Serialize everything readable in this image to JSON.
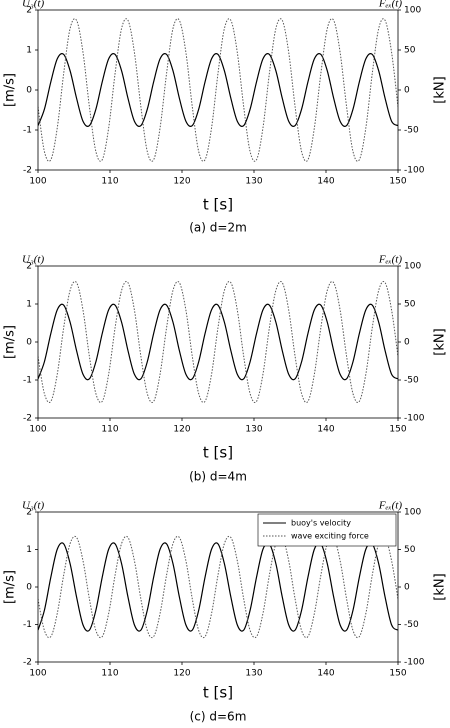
{
  "chart_data": [
    {
      "type": "line",
      "y_title": "U₃(t)",
      "y2_title": "Fₑₓ(t)",
      "ylabel": "[m/s]",
      "y2label": "[kN]",
      "xlabel": "t [s]",
      "caption": "(a) d=2m",
      "x": [
        100,
        100.89,
        101.79,
        102.68,
        103.57,
        104.46,
        105.36,
        106.25,
        107.14,
        108.04,
        108.93,
        109.82,
        110.71,
        111.61,
        112.5,
        113.39,
        114.29,
        115.18,
        116.07,
        116.96,
        117.86,
        118.75,
        119.64,
        120.54,
        121.43,
        122.32,
        123.21,
        124.11,
        125,
        125.89,
        126.79,
        127.68,
        128.57,
        129.46,
        130.36,
        131.25,
        132.14,
        133.04,
        133.93,
        134.82,
        135.71,
        136.61,
        137.5,
        138.39,
        139.29,
        140.18,
        141.07,
        141.96,
        142.86,
        143.75,
        144.64,
        145.54,
        146.43,
        147.32,
        148.21,
        149.11,
        150
      ],
      "xlim": [
        100,
        150
      ],
      "xticks": [
        100,
        110,
        120,
        130,
        140,
        150
      ],
      "ylim": [
        -2,
        2
      ],
      "yticks": [
        -2,
        -1,
        0,
        1,
        2
      ],
      "y2lim": [
        -100,
        100
      ],
      "y2ticks": [
        -100,
        -50,
        0,
        50,
        100
      ],
      "series": [
        {
          "color": "#000000",
          "style": "solid",
          "values": [
            -0.89,
            -0.48,
            0.21,
            0.78,
            0.89,
            0.48,
            -0.21,
            -0.78,
            -0.89,
            -0.48,
            0.21,
            0.78,
            0.89,
            0.48,
            -0.21,
            -0.78,
            -0.89,
            -0.48,
            0.21,
            0.78,
            0.89,
            0.48,
            -0.21,
            -0.78,
            -0.89,
            -0.48,
            0.21,
            0.78,
            0.89,
            0.48,
            -0.21,
            -0.78,
            -0.89,
            -0.48,
            0.21,
            0.78,
            0.89,
            0.48,
            -0.21,
            -0.78,
            -0.89,
            -0.48,
            0.21,
            0.78,
            0.89,
            0.48,
            -0.21,
            -0.78,
            -0.89,
            -0.48,
            0.21,
            0.78,
            0.89,
            0.48,
            -0.21,
            -0.78,
            -0.89
          ]
        },
        {
          "color": "#555555",
          "style": "dotted",
          "axis": "y2",
          "values": [
            -21,
            -77,
            -87,
            -47,
            21,
            77,
            87,
            47,
            -21,
            -77,
            -87,
            -47,
            21,
            77,
            87,
            47,
            -21,
            -77,
            -87,
            -47,
            21,
            77,
            87,
            47,
            -21,
            -77,
            -87,
            -47,
            21,
            77,
            87,
            47,
            -21,
            -77,
            -87,
            -47,
            21,
            77,
            87,
            47,
            -21,
            -77,
            -87,
            -47,
            21,
            77,
            87,
            47,
            -21,
            -77,
            -87,
            -47,
            21,
            77,
            87,
            47,
            -21
          ]
        }
      ]
    },
    {
      "type": "line",
      "y_title": "U₃(t)",
      "y2_title": "Fₑₓ(t)",
      "ylabel": "[m/s]",
      "y2label": "[kN]",
      "xlabel": "t [s]",
      "caption": "(b) d=4m",
      "x": [
        100,
        100.89,
        101.79,
        102.68,
        103.57,
        104.46,
        105.36,
        106.25,
        107.14,
        108.04,
        108.93,
        109.82,
        110.71,
        111.61,
        112.5,
        113.39,
        114.29,
        115.18,
        116.07,
        116.96,
        117.86,
        118.75,
        119.64,
        120.54,
        121.43,
        122.32,
        123.21,
        124.11,
        125,
        125.89,
        126.79,
        127.68,
        128.57,
        129.46,
        130.36,
        131.25,
        132.14,
        133.04,
        133.93,
        134.82,
        135.71,
        136.61,
        137.5,
        138.39,
        139.29,
        140.18,
        141.07,
        141.96,
        142.86,
        143.75,
        144.64,
        145.54,
        146.43,
        147.32,
        148.21,
        149.11,
        150
      ],
      "xlim": [
        100,
        150
      ],
      "xticks": [
        100,
        110,
        120,
        130,
        140,
        150
      ],
      "ylim": [
        -2,
        2
      ],
      "yticks": [
        -2,
        -1,
        0,
        1,
        2
      ],
      "y2lim": [
        -100,
        100
      ],
      "y2ticks": [
        -100,
        -50,
        0,
        50,
        100
      ],
      "series": [
        {
          "color": "#000000",
          "style": "solid",
          "values": [
            -0.97,
            -0.52,
            0.23,
            0.85,
            0.97,
            0.52,
            -0.23,
            -0.85,
            -0.97,
            -0.52,
            0.23,
            0.85,
            0.97,
            0.52,
            -0.23,
            -0.85,
            -0.97,
            -0.52,
            0.23,
            0.85,
            0.97,
            0.52,
            -0.23,
            -0.85,
            -0.97,
            -0.52,
            0.23,
            0.85,
            0.97,
            0.52,
            -0.23,
            -0.85,
            -0.97,
            -0.52,
            0.23,
            0.85,
            0.97,
            0.52,
            -0.23,
            -0.85,
            -0.97,
            -0.52,
            0.23,
            0.85,
            0.97,
            0.52,
            -0.23,
            -0.85,
            -0.97,
            -0.52,
            0.23,
            0.85,
            0.97,
            0.52,
            -0.23,
            -0.85,
            -0.97
          ]
        },
        {
          "color": "#555555",
          "style": "dotted",
          "axis": "y2",
          "values": [
            -19,
            -68,
            -78,
            -42,
            19,
            68,
            78,
            42,
            -19,
            -68,
            -78,
            -42,
            19,
            68,
            78,
            42,
            -19,
            -68,
            -78,
            -42,
            19,
            68,
            78,
            42,
            -19,
            -68,
            -78,
            -42,
            19,
            68,
            78,
            42,
            -19,
            -68,
            -78,
            -42,
            19,
            68,
            78,
            42,
            -19,
            -68,
            -78,
            -42,
            19,
            68,
            78,
            42,
            -19,
            -68,
            -78,
            -42,
            19,
            68,
            78,
            42,
            -19
          ]
        }
      ]
    },
    {
      "type": "line",
      "y_title": "U₃(t)",
      "y2_title": "Fₑₓ(t)",
      "ylabel": "[m/s]",
      "y2label": "[kN]",
      "xlabel": "t [s]",
      "caption": "(c) d=6m",
      "legend": "upper right",
      "x": [
        100,
        100.89,
        101.79,
        102.68,
        103.57,
        104.46,
        105.36,
        106.25,
        107.14,
        108.04,
        108.93,
        109.82,
        110.71,
        111.61,
        112.5,
        113.39,
        114.29,
        115.18,
        116.07,
        116.96,
        117.86,
        118.75,
        119.64,
        120.54,
        121.43,
        122.32,
        123.21,
        124.11,
        125,
        125.89,
        126.79,
        127.68,
        128.57,
        129.46,
        130.36,
        131.25,
        132.14,
        133.04,
        133.93,
        134.82,
        135.71,
        136.61,
        137.5,
        138.39,
        139.29,
        140.18,
        141.07,
        141.96,
        142.86,
        143.75,
        144.64,
        145.54,
        146.43,
        147.32,
        148.21,
        149.11,
        150
      ],
      "xlim": [
        100,
        150
      ],
      "xticks": [
        100,
        110,
        120,
        130,
        140,
        150
      ],
      "ylim": [
        -2,
        2
      ],
      "yticks": [
        -2,
        -1,
        0,
        1,
        2
      ],
      "y2lim": [
        -100,
        100
      ],
      "y2ticks": [
        -100,
        -50,
        0,
        50,
        100
      ],
      "series": [
        {
          "name": "buoy's velocity",
          "color": "#000000",
          "style": "solid",
          "values": [
            -1.15,
            -0.62,
            0.27,
            1.01,
            1.15,
            0.62,
            -0.27,
            -1.01,
            -1.15,
            -0.62,
            0.27,
            1.01,
            1.15,
            0.62,
            -0.27,
            -1.01,
            -1.15,
            -0.62,
            0.27,
            1.01,
            1.15,
            0.62,
            -0.27,
            -1.01,
            -1.15,
            -0.62,
            0.27,
            1.01,
            1.15,
            0.62,
            -0.27,
            -1.01,
            -1.15,
            -0.62,
            0.27,
            1.01,
            1.15,
            0.62,
            -0.27,
            -1.01,
            -1.15,
            -0.62,
            0.27,
            1.01,
            1.15,
            0.62,
            -0.27,
            -1.01,
            -1.15,
            -0.62,
            0.27,
            1.01,
            1.15,
            0.62,
            -0.27,
            -1.01,
            -1.15
          ]
        },
        {
          "name": "wave exciting force",
          "color": "#555555",
          "style": "dotted",
          "axis": "y2",
          "values": [
            -16,
            -58,
            -66,
            -35,
            16,
            58,
            66,
            35,
            -16,
            -58,
            -66,
            -35,
            16,
            58,
            66,
            35,
            -16,
            -58,
            -66,
            -35,
            16,
            58,
            66,
            35,
            -16,
            -58,
            -66,
            -35,
            16,
            58,
            66,
            35,
            -16,
            -58,
            -66,
            -35,
            16,
            58,
            66,
            35,
            -16,
            -58,
            -66,
            -35,
            16,
            58,
            66,
            35,
            -16,
            -58,
            -66,
            -35,
            16,
            58,
            66,
            35,
            -16
          ]
        }
      ]
    }
  ]
}
